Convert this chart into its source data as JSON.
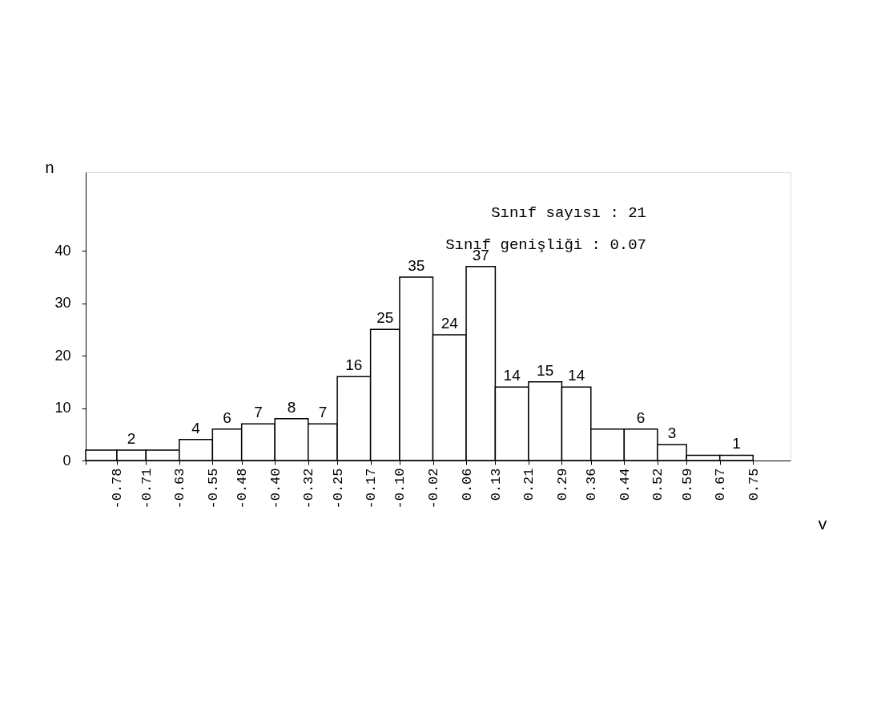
{
  "chart_data": {
    "type": "histogram",
    "xlabel": "v",
    "ylabel": "n",
    "bins": [
      -0.855,
      -0.78,
      -0.71,
      -0.63,
      -0.55,
      -0.48,
      -0.4,
      -0.32,
      -0.25,
      -0.17,
      -0.1,
      -0.02,
      0.06,
      0.13,
      0.21,
      0.29,
      0.36,
      0.44,
      0.52,
      0.59,
      0.67,
      0.75
    ],
    "values": [
      2,
      2,
      2,
      4,
      6,
      7,
      8,
      7,
      16,
      25,
      35,
      24,
      37,
      14,
      15,
      14,
      6,
      6,
      3,
      1,
      1
    ],
    "value_labels": [
      null,
      "2",
      null,
      "4",
      "6",
      "7",
      "8",
      "7",
      "16",
      "25",
      "35",
      "24",
      "37",
      "14",
      "15",
      "14",
      null,
      "6",
      "3",
      null,
      "1"
    ],
    "color": "#ffffff",
    "xlim": [
      -0.855,
      0.84
    ],
    "xticks": [
      {
        "value": -0.855,
        "label": null
      },
      {
        "value": -0.78,
        "label": "-0.78"
      },
      {
        "value": -0.71,
        "label": "-0.71"
      },
      {
        "value": -0.63,
        "label": "-0.63"
      },
      {
        "value": -0.55,
        "label": "-0.55"
      },
      {
        "value": -0.48,
        "label": "-0.48"
      },
      {
        "value": -0.4,
        "label": "-0.40"
      },
      {
        "value": -0.32,
        "label": "-0.32"
      },
      {
        "value": -0.25,
        "label": "-0.25"
      },
      {
        "value": -0.17,
        "label": "-0.17"
      },
      {
        "value": -0.1,
        "label": "-0.10"
      },
      {
        "value": -0.02,
        "label": "-0.02"
      },
      {
        "value": 0.06,
        "label": "0.06"
      },
      {
        "value": 0.13,
        "label": "0.13"
      },
      {
        "value": 0.21,
        "label": "0.21"
      },
      {
        "value": 0.29,
        "label": "0.29"
      },
      {
        "value": 0.36,
        "label": "0.36"
      },
      {
        "value": 0.44,
        "label": "0.44"
      },
      {
        "value": 0.52,
        "label": "0.52"
      },
      {
        "value": 0.59,
        "label": "0.59"
      },
      {
        "value": 0.67,
        "label": "0.67"
      },
      {
        "value": 0.75,
        "label": "0.75"
      }
    ],
    "ylim": [
      0,
      55
    ],
    "yticks": [
      0,
      10,
      20,
      30,
      40
    ],
    "grid": false,
    "annotations": [
      "Sınıf sayısı : 21",
      "Sınıf genişliği : 0.07"
    ]
  }
}
